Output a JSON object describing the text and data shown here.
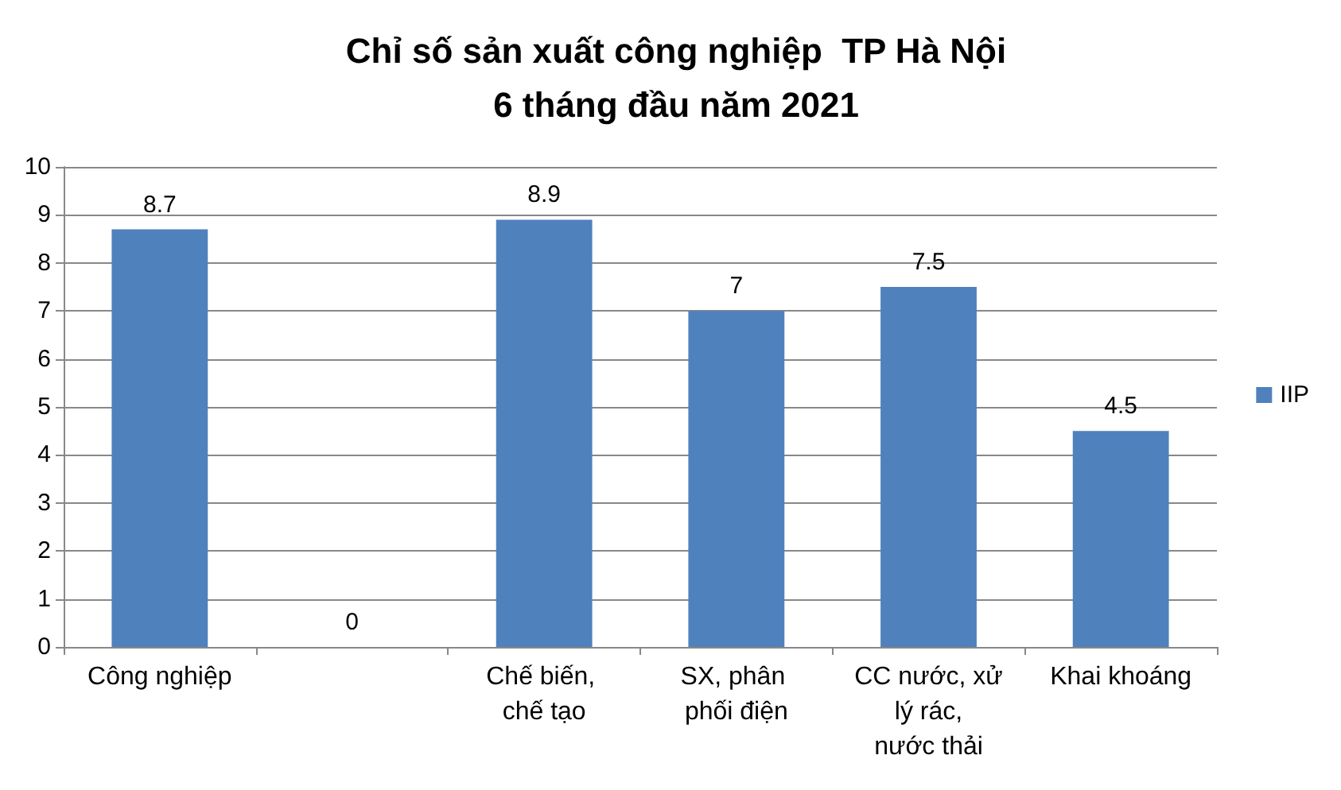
{
  "chart_data": {
    "type": "bar",
    "title": "Chỉ số sản xuất công nghiệp  TP Hà Nội\n6 tháng đầu năm 2021",
    "categories": [
      "Công nghiệp",
      null,
      "Chế biến, chế tạo",
      "SX, phân phối điện",
      "CC nước, xử lý rác, nước thải",
      "Khai khoáng"
    ],
    "series": [
      {
        "name": "IIP",
        "color": "#4f81bd",
        "values": [
          8.7,
          0,
          8.9,
          7,
          7.5,
          4.5
        ]
      }
    ],
    "ylim": [
      0,
      10
    ],
    "yticks": [
      0,
      1,
      2,
      3,
      4,
      5,
      6,
      7,
      8,
      9,
      10
    ],
    "grid": "y",
    "legend": "right",
    "data_labels": true
  }
}
